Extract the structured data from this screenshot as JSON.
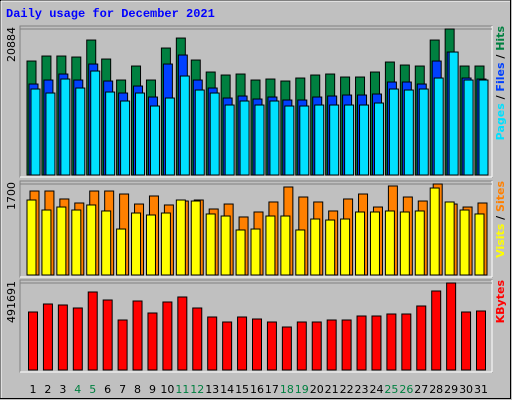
{
  "chart_data": [
    {
      "type": "bar",
      "title": "Daily usage for December 2021",
      "ylim": [
        0,
        20884
      ],
      "yticks": [
        20884
      ],
      "legend_separator": " / ",
      "series": [
        {
          "name": "Hits",
          "color": "#008040",
          "values": [
            16302,
            17017,
            17017,
            16874,
            19305,
            16588,
            13585,
            15587,
            13585,
            18161,
            19591,
            16445,
            14729,
            14300,
            14443,
            13585,
            13728,
            13442,
            13871,
            14300,
            14443,
            14014,
            14014,
            14729,
            16159,
            15730,
            15587,
            19305,
            20884,
            15587,
            15587
          ]
        },
        {
          "name": "Files",
          "color": "#0040FF",
          "values": [
            13013,
            13585,
            14443,
            13585,
            15873,
            13442,
            11726,
            12727,
            11154,
            15873,
            17160,
            13585,
            12441,
            11011,
            11297,
            10868,
            11154,
            10725,
            10725,
            11154,
            11297,
            11440,
            11440,
            11583,
            13299,
            13299,
            13013,
            16302,
            17589,
            13871,
            13728
          ]
        },
        {
          "name": "Pages",
          "color": "#00E0FF",
          "values": [
            12298,
            11726,
            13728,
            12441,
            14872,
            11869,
            10582,
            11726,
            9867,
            11011,
            14157,
            12155,
            11726,
            10010,
            10582,
            10010,
            10582,
            9867,
            9867,
            10010,
            10010,
            10010,
            10010,
            10296,
            12298,
            12155,
            12298,
            13871,
            17589,
            13585,
            13585
          ]
        }
      ]
    },
    {
      "type": "bar",
      "ylim": [
        0,
        1700
      ],
      "yticks": [
        1700
      ],
      "legend_separator": " / ",
      "series": [
        {
          "name": "Sites",
          "color": "#FF8000",
          "values": [
            1569,
            1569,
            1420,
            1345,
            1569,
            1569,
            1513,
            1326,
            1476,
            1308,
            1382,
            1401,
            1233,
            1326,
            1084,
            1177,
            1364,
            1644,
            1457,
            1364,
            1196,
            1420,
            1513,
            1270,
            1663,
            1457,
            1382,
            1700,
            1326,
            1270,
            1345
          ]
        },
        {
          "name": "Visits",
          "color": "#FFFF00",
          "values": [
            1401,
            1214,
            1270,
            1214,
            1308,
            1196,
            859,
            1158,
            1121,
            1158,
            1401,
            1382,
            1140,
            1102,
            841,
            859,
            1102,
            1102,
            841,
            1046,
            1027,
            1046,
            1177,
            1177,
            1196,
            1177,
            1196,
            1625,
            1364,
            1214,
            1140
          ]
        }
      ]
    },
    {
      "type": "bar",
      "ylim": [
        0,
        491691
      ],
      "yticks": [
        491691
      ],
      "categories": [
        "1",
        "2",
        "3",
        "4",
        "5",
        "6",
        "7",
        "8",
        "9",
        "10",
        "11",
        "12",
        "13",
        "14",
        "15",
        "16",
        "17",
        "18",
        "19",
        "20",
        "21",
        "22",
        "23",
        "24",
        "25",
        "26",
        "27",
        "28",
        "29",
        "30",
        "31"
      ],
      "category_colors": [
        "#000000",
        "#000000",
        "#000000",
        "#008040",
        "#008040",
        "#000000",
        "#000000",
        "#000000",
        "#000000",
        "#000000",
        "#008040",
        "#008040",
        "#000000",
        "#000000",
        "#000000",
        "#000000",
        "#000000",
        "#008040",
        "#008040",
        "#000000",
        "#000000",
        "#000000",
        "#000000",
        "#000000",
        "#008040",
        "#008040",
        "#000000",
        "#000000",
        "#000000",
        "#000000",
        "#000000"
      ],
      "series": [
        {
          "name": "KBytes",
          "color": "#FF0000",
          "values": [
            327816,
            373032,
            367380,
            350424,
            440856,
            395640,
            282600,
            389988,
            322164,
            384336,
            412596,
            350424,
            299556,
            271296,
            299556,
            288252,
            271296,
            243036,
            271296,
            271296,
            282600,
            282600,
            305208,
            305208,
            316512,
            316512,
            361728,
            446508,
            491691,
            327816,
            333468
          ]
        }
      ]
    }
  ]
}
